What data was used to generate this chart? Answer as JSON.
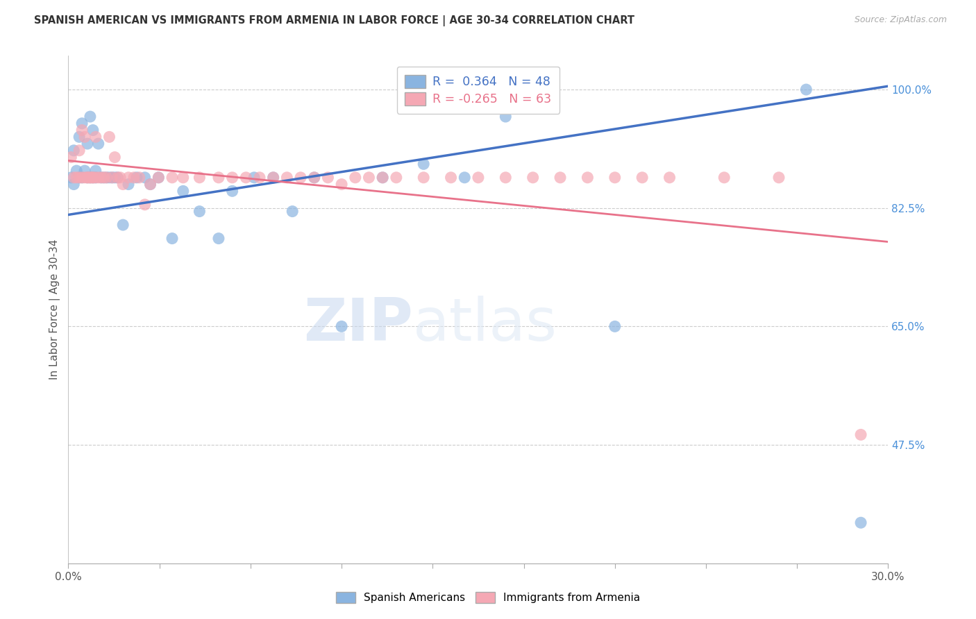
{
  "title": "SPANISH AMERICAN VS IMMIGRANTS FROM ARMENIA IN LABOR FORCE | AGE 30-34 CORRELATION CHART",
  "source": "Source: ZipAtlas.com",
  "ylabel": "In Labor Force | Age 30-34",
  "xlim": [
    0.0,
    0.3
  ],
  "ylim": [
    0.3,
    1.05
  ],
  "xticks": [
    0.0,
    0.03333,
    0.06667,
    0.1,
    0.13333,
    0.16667,
    0.2,
    0.23333,
    0.26667,
    0.3
  ],
  "xticklabels": [
    "0.0%",
    "",
    "",
    "",
    "",
    "",
    "",
    "",
    "",
    "30.0%"
  ],
  "yticks_right": [
    1.0,
    0.825,
    0.65,
    0.475
  ],
  "ytick_labels_right": [
    "100.0%",
    "82.5%",
    "65.0%",
    "47.5%"
  ],
  "r_blue": 0.364,
  "n_blue": 48,
  "r_pink": -0.265,
  "n_pink": 63,
  "blue_color": "#8ab4e0",
  "pink_color": "#f5a8b4",
  "line_blue": "#4472c4",
  "line_pink": "#e8728a",
  "blue_scatter_x": [
    0.001,
    0.002,
    0.002,
    0.003,
    0.004,
    0.004,
    0.005,
    0.005,
    0.006,
    0.007,
    0.007,
    0.008,
    0.008,
    0.009,
    0.009,
    0.01,
    0.01,
    0.011,
    0.012,
    0.013,
    0.014,
    0.015,
    0.016,
    0.017,
    0.018,
    0.02,
    0.022,
    0.025,
    0.028,
    0.03,
    0.033,
    0.038,
    0.042,
    0.048,
    0.055,
    0.06,
    0.068,
    0.075,
    0.082,
    0.09,
    0.1,
    0.115,
    0.13,
    0.145,
    0.16,
    0.2,
    0.27,
    0.29
  ],
  "blue_scatter_y": [
    0.87,
    0.86,
    0.91,
    0.88,
    0.87,
    0.93,
    0.87,
    0.95,
    0.88,
    0.87,
    0.92,
    0.87,
    0.96,
    0.87,
    0.94,
    0.87,
    0.88,
    0.92,
    0.87,
    0.87,
    0.87,
    0.87,
    0.87,
    0.87,
    0.87,
    0.8,
    0.86,
    0.87,
    0.87,
    0.86,
    0.87,
    0.78,
    0.85,
    0.82,
    0.78,
    0.85,
    0.87,
    0.87,
    0.82,
    0.87,
    0.65,
    0.87,
    0.89,
    0.87,
    0.96,
    0.65,
    1.0,
    0.36
  ],
  "pink_scatter_x": [
    0.001,
    0.002,
    0.003,
    0.004,
    0.004,
    0.005,
    0.005,
    0.006,
    0.006,
    0.007,
    0.007,
    0.008,
    0.008,
    0.009,
    0.009,
    0.01,
    0.01,
    0.011,
    0.012,
    0.013,
    0.014,
    0.015,
    0.016,
    0.017,
    0.018,
    0.019,
    0.02,
    0.022,
    0.024,
    0.026,
    0.028,
    0.03,
    0.033,
    0.038,
    0.042,
    0.048,
    0.055,
    0.06,
    0.065,
    0.07,
    0.075,
    0.08,
    0.085,
    0.09,
    0.095,
    0.1,
    0.105,
    0.11,
    0.115,
    0.12,
    0.13,
    0.14,
    0.15,
    0.16,
    0.17,
    0.18,
    0.19,
    0.2,
    0.21,
    0.22,
    0.24,
    0.26,
    0.29
  ],
  "pink_scatter_y": [
    0.9,
    0.87,
    0.87,
    0.87,
    0.91,
    0.87,
    0.94,
    0.87,
    0.93,
    0.87,
    0.87,
    0.87,
    0.87,
    0.87,
    0.87,
    0.87,
    0.93,
    0.87,
    0.87,
    0.87,
    0.87,
    0.93,
    0.87,
    0.9,
    0.87,
    0.87,
    0.86,
    0.87,
    0.87,
    0.87,
    0.83,
    0.86,
    0.87,
    0.87,
    0.87,
    0.87,
    0.87,
    0.87,
    0.87,
    0.87,
    0.87,
    0.87,
    0.87,
    0.87,
    0.87,
    0.86,
    0.87,
    0.87,
    0.87,
    0.87,
    0.87,
    0.87,
    0.87,
    0.87,
    0.87,
    0.87,
    0.87,
    0.87,
    0.87,
    0.87,
    0.87,
    0.87,
    0.49
  ],
  "blue_line_x0": 0.0,
  "blue_line_y0": 0.815,
  "blue_line_x1": 0.3,
  "blue_line_y1": 1.005,
  "pink_line_x0": 0.0,
  "pink_line_y0": 0.895,
  "pink_line_x1": 0.3,
  "pink_line_y1": 0.775
}
